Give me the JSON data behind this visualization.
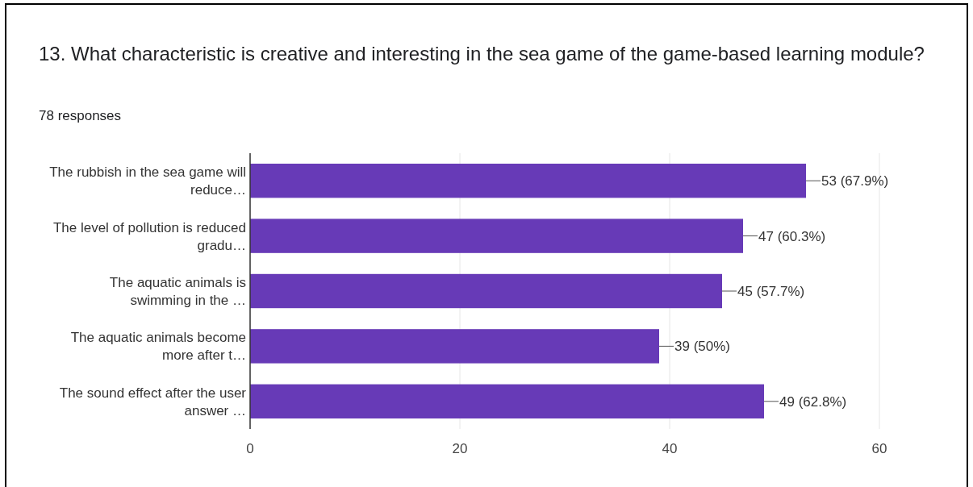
{
  "chart_data": {
    "type": "bar",
    "orientation": "horizontal",
    "title": "13. What characteristic is creative and interesting in the sea game of the game-based learning module?",
    "subtitle": "78 responses",
    "categories": [
      "The rubbish in the sea game will\nreduce…",
      "The level of pollution is reduced\ngradu…",
      "The aquatic animals is\nswimming in the …",
      "The aquatic animals become\nmore after t…",
      "The sound effect after the user\nanswer …"
    ],
    "values": [
      53,
      47,
      45,
      39,
      49
    ],
    "value_labels": [
      "53 (67.9%)",
      "47 (60.3%)",
      "45 (57.7%)",
      "39 (50%)",
      "49 (62.8%)"
    ],
    "color": "#673ab7",
    "xlim": [
      0,
      60
    ],
    "xticks": [
      0,
      20,
      40,
      60
    ],
    "grid": "x"
  }
}
